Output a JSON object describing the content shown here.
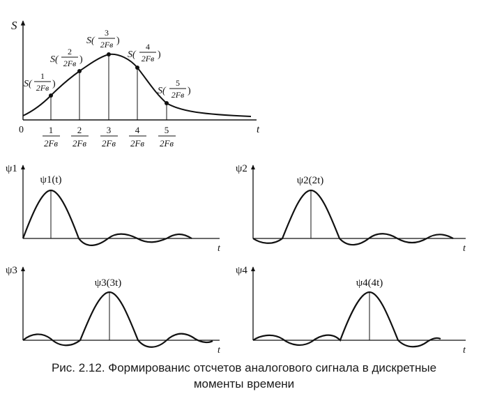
{
  "top_plot": {
    "y_label": "S",
    "x_label": "t",
    "origin_label": "0",
    "ticks": [
      {
        "num": "1",
        "den": "2Fв"
      },
      {
        "num": "2",
        "den": "2Fв"
      },
      {
        "num": "3",
        "den": "2Fв"
      },
      {
        "num": "4",
        "den": "2Fв"
      },
      {
        "num": "5",
        "den": "2Fв"
      }
    ],
    "samples": [
      {
        "prefix": "S(",
        "num": "1",
        "den": "2Fв",
        "suffix": ")"
      },
      {
        "prefix": "S(",
        "num": "2",
        "den": "2Fв",
        "suffix": ")"
      },
      {
        "prefix": "S(",
        "num": "3",
        "den": "2Fв",
        "suffix": ")"
      },
      {
        "prefix": "S(",
        "num": "4",
        "den": "2Fв",
        "suffix": ")"
      },
      {
        "prefix": "S(",
        "num": "5",
        "den": "2Fв",
        "suffix": ")"
      }
    ]
  },
  "panels": [
    {
      "axis_label": "ψ1",
      "peak_label": "ψ1(t)",
      "x_label": "t"
    },
    {
      "axis_label": "ψ2",
      "peak_label": "ψ2(2t)",
      "x_label": "t"
    },
    {
      "axis_label": "ψ3",
      "peak_label": "ψ3(3t)",
      "x_label": "t"
    },
    {
      "axis_label": "ψ4",
      "peak_label": "ψ4(4t)",
      "x_label": "t"
    }
  ],
  "caption": {
    "line1": "Рис. 2.12. Формированис отсчетов аналогового сигнала в дискретные",
    "line2": "моменты времени"
  }
}
